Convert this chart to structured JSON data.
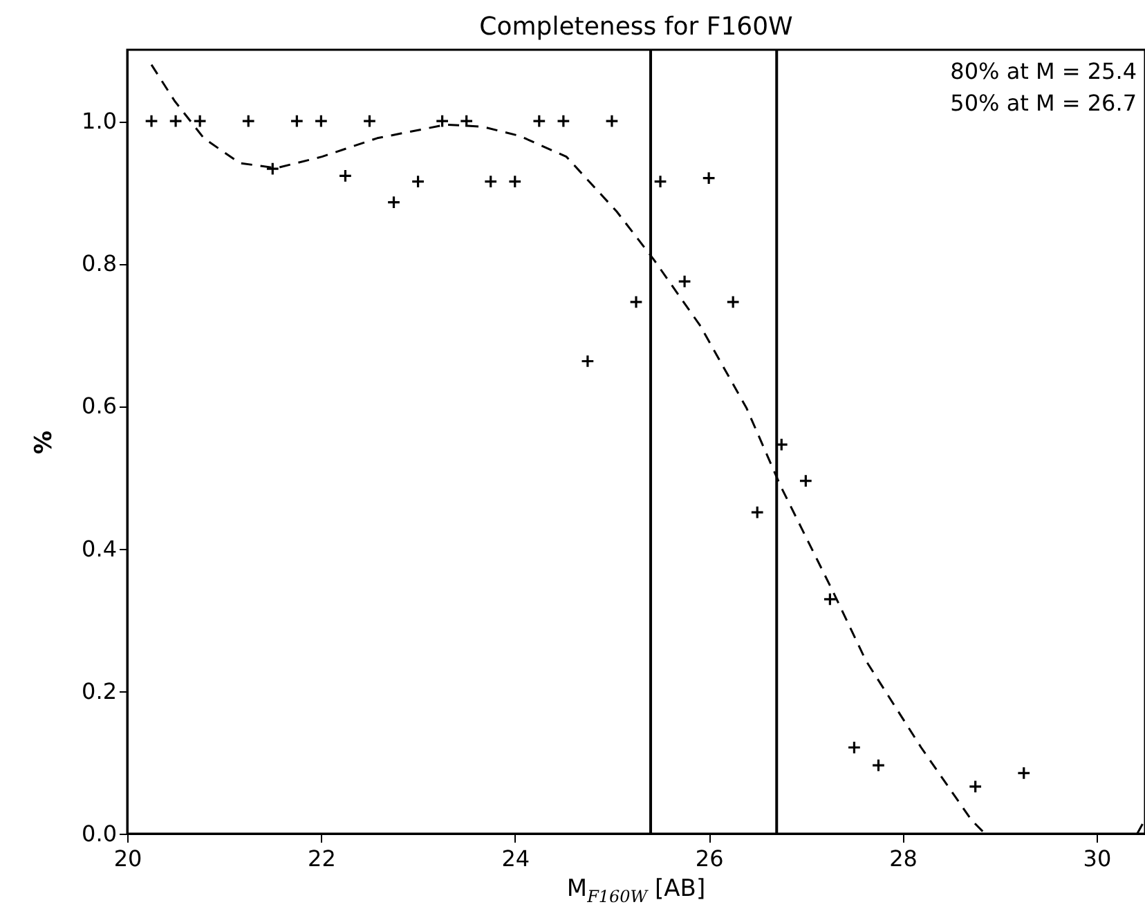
{
  "chart_data": {
    "type": "scatter",
    "title": "Completeness for F160W",
    "xlabel": "M$_{F160W}$ [AB]",
    "ylabel": "%",
    "x": [
      20.25,
      20.5,
      20.75,
      21.25,
      21.5,
      21.75,
      22.0,
      22.25,
      22.5,
      22.75,
      23.0,
      23.25,
      23.5,
      23.75,
      24.0,
      24.25,
      24.5,
      24.75,
      25.0,
      25.25,
      25.5,
      25.75,
      26.0,
      26.25,
      26.5,
      26.75,
      27.0,
      27.25,
      27.5,
      27.75,
      28.75,
      29.25
    ],
    "series": [
      {
        "color": "#000000",
        "marker": "cross",
        "values": [
          1.0,
          1.0,
          1.0,
          1.0,
          0.933,
          1.0,
          1.0,
          0.923,
          1.0,
          0.886,
          0.915,
          1.0,
          1.0,
          0.915,
          0.915,
          1.0,
          1.0,
          0.663,
          1.0,
          0.746,
          0.915,
          0.775,
          0.92,
          0.746,
          0.451,
          0.546,
          0.495,
          0.329,
          0.121,
          0.096,
          0.066,
          0.085
        ]
      },
      {
        "type": "line",
        "color": "#000000",
        "line_style": "dashed",
        "marker": "none",
        "x": [
          20.25,
          20.49,
          20.79,
          21.16,
          21.54,
          22.01,
          22.58,
          23.29,
          23.67,
          24.05,
          24.53,
          25.05,
          25.43,
          25.91,
          26.39,
          26.74,
          27.28,
          27.62,
          28.19,
          28.71,
          28.85,
          30.0,
          30.42,
          30.5
        ],
        "values": [
          1.079,
          1.028,
          0.976,
          0.941,
          0.934,
          0.95,
          0.976,
          0.995,
          0.992,
          0.979,
          0.95,
          0.873,
          0.806,
          0.713,
          0.597,
          0.488,
          0.34,
          0.243,
          0.121,
          0.019,
          0.0,
          null,
          0.0,
          0.02
        ]
      }
    ],
    "xlim": [
      20,
      30.5
    ],
    "xticks": [
      20,
      22,
      24,
      26,
      28,
      30
    ],
    "ylim": [
      0,
      1.1
    ],
    "yticks": [
      {
        "value": 0,
        "label": "0.0"
      },
      {
        "value": 0.2,
        "label": "0.2"
      },
      {
        "value": 0.4,
        "label": "0.4"
      },
      {
        "value": 0.6,
        "label": "0.6"
      },
      {
        "value": 0.8,
        "label": "0.8"
      },
      {
        "value": 1.0,
        "label": "1.0"
      }
    ],
    "ref_lines": [
      {
        "axis": "x",
        "value": 25.4,
        "color": "#000000"
      },
      {
        "axis": "x",
        "value": 26.7,
        "color": "#000000"
      }
    ],
    "annotations": [
      "80% at M = 25.4",
      "50% at M = 26.7"
    ],
    "grid": false
  }
}
